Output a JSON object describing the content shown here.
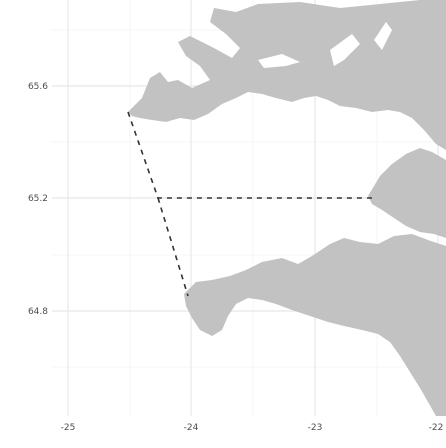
{
  "map": {
    "x_axis": {
      "ticks": [
        "-25",
        "-24",
        "-23",
        "-22"
      ]
    },
    "y_axis": {
      "ticks": [
        "65.6",
        "65.2",
        "64.8"
      ]
    },
    "colors": {
      "panel_background": "#ffffff",
      "grid_major": "#ebebeb",
      "grid_minor": "#f5f5f5",
      "land": "#c2c2c2",
      "route_line": "#333333"
    },
    "route": {
      "style": "dashed"
    }
  }
}
